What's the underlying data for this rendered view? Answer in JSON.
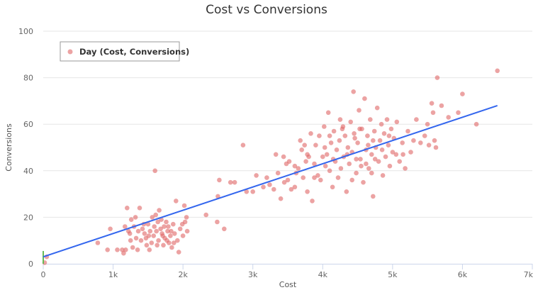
{
  "chart_data": {
    "type": "scatter",
    "title": "Cost vs Conversions",
    "xlabel": "Cost",
    "ylabel": "Conversions",
    "xlim": [
      0,
      7000
    ],
    "ylim": [
      0,
      100
    ],
    "x_ticks": [
      {
        "value": 0,
        "label": "0"
      },
      {
        "value": 1000,
        "label": "1k"
      },
      {
        "value": 2000,
        "label": "2k"
      },
      {
        "value": 3000,
        "label": "3k"
      },
      {
        "value": 4000,
        "label": "4k"
      },
      {
        "value": 5000,
        "label": "5k"
      },
      {
        "value": 6000,
        "label": "6k"
      },
      {
        "value": 7000,
        "label": "7k"
      }
    ],
    "y_ticks": [
      {
        "value": 0,
        "label": "0"
      },
      {
        "value": 20,
        "label": "20"
      },
      {
        "value": 40,
        "label": "40"
      },
      {
        "value": 60,
        "label": "60"
      },
      {
        "value": 80,
        "label": "80"
      },
      {
        "value": 100,
        "label": "100"
      }
    ],
    "grid": true,
    "legend": {
      "position": "top-left",
      "entries": [
        "Day (Cost, Conversions)"
      ]
    },
    "colors": {
      "points": "#e06666",
      "trendline": "#3366ee",
      "marker": "#66bb55",
      "grid": "#e6e6e6",
      "axis": "#ccd6eb"
    },
    "series": [
      {
        "name": "Day (Cost, Conversions)",
        "points": [
          [
            20,
            0.5
          ],
          [
            50,
            3
          ],
          [
            780,
            9
          ],
          [
            920,
            6
          ],
          [
            960,
            15
          ],
          [
            1060,
            6
          ],
          [
            1130,
            6
          ],
          [
            1150,
            4.5
          ],
          [
            1180,
            6
          ],
          [
            1200,
            24
          ],
          [
            1220,
            14
          ],
          [
            1240,
            13
          ],
          [
            1260,
            19
          ],
          [
            1300,
            16
          ],
          [
            1320,
            20
          ],
          [
            1350,
            6
          ],
          [
            1380,
            24
          ],
          [
            1400,
            10
          ],
          [
            1420,
            15
          ],
          [
            1450,
            13
          ],
          [
            1480,
            8
          ],
          [
            1500,
            17
          ],
          [
            1510,
            12
          ],
          [
            1530,
            14
          ],
          [
            1550,
            9
          ],
          [
            1560,
            20
          ],
          [
            1580,
            12
          ],
          [
            1600,
            40
          ],
          [
            1610,
            21
          ],
          [
            1620,
            14
          ],
          [
            1640,
            18
          ],
          [
            1650,
            10
          ],
          [
            1660,
            23
          ],
          [
            1680,
            15
          ],
          [
            1700,
            13
          ],
          [
            1720,
            8
          ],
          [
            1730,
            16
          ],
          [
            1740,
            11
          ],
          [
            1760,
            18
          ],
          [
            1780,
            14
          ],
          [
            1800,
            9
          ],
          [
            1820,
            12
          ],
          [
            1840,
            7
          ],
          [
            1860,
            17
          ],
          [
            1880,
            13
          ],
          [
            1900,
            27
          ],
          [
            1920,
            10
          ],
          [
            1940,
            5
          ],
          [
            1960,
            15
          ],
          [
            2000,
            12
          ],
          [
            2020,
            25
          ],
          [
            2030,
            18
          ],
          [
            2050,
            20
          ],
          [
            2060,
            14
          ],
          [
            1170,
            16
          ],
          [
            1250,
            10
          ],
          [
            1280,
            7
          ],
          [
            1330,
            11
          ],
          [
            1360,
            14
          ],
          [
            1440,
            17
          ],
          [
            1470,
            11
          ],
          [
            1520,
            6
          ],
          [
            1590,
            16
          ],
          [
            1630,
            8
          ],
          [
            1690,
            19
          ],
          [
            1710,
            12
          ],
          [
            1770,
            10
          ],
          [
            1790,
            16
          ],
          [
            1830,
            14
          ],
          [
            1870,
            9
          ],
          [
            1990,
            17
          ],
          [
            2330,
            21
          ],
          [
            2490,
            18
          ],
          [
            2500,
            29
          ],
          [
            2520,
            36
          ],
          [
            2590,
            15
          ],
          [
            2680,
            35
          ],
          [
            2740,
            35
          ],
          [
            2860,
            51
          ],
          [
            2910,
            31
          ],
          [
            3000,
            31
          ],
          [
            3050,
            38
          ],
          [
            3150,
            33
          ],
          [
            3200,
            37
          ],
          [
            3240,
            34
          ],
          [
            3300,
            32
          ],
          [
            3330,
            47
          ],
          [
            3360,
            39
          ],
          [
            3400,
            28
          ],
          [
            3450,
            35
          ],
          [
            3480,
            43
          ],
          [
            3500,
            36
          ],
          [
            3520,
            44
          ],
          [
            3550,
            32
          ],
          [
            3600,
            33
          ],
          [
            3620,
            39
          ],
          [
            3650,
            41
          ],
          [
            3680,
            53
          ],
          [
            3700,
            49
          ],
          [
            3720,
            37
          ],
          [
            3740,
            51
          ],
          [
            3760,
            44
          ],
          [
            3780,
            31
          ],
          [
            3800,
            46
          ],
          [
            3830,
            56
          ],
          [
            3850,
            27
          ],
          [
            3880,
            43
          ],
          [
            3900,
            51
          ],
          [
            3930,
            38
          ],
          [
            3950,
            55
          ],
          [
            3970,
            36
          ],
          [
            4000,
            46
          ],
          [
            4020,
            59
          ],
          [
            4040,
            42
          ],
          [
            4060,
            47
          ],
          [
            4080,
            65
          ],
          [
            4100,
            40
          ],
          [
            4120,
            52
          ],
          [
            4140,
            33
          ],
          [
            4160,
            57
          ],
          [
            4180,
            44
          ],
          [
            4200,
            49
          ],
          [
            4220,
            37
          ],
          [
            4240,
            53
          ],
          [
            4260,
            41
          ],
          [
            4280,
            58
          ],
          [
            4300,
            46
          ],
          [
            4320,
            55
          ],
          [
            4340,
            31
          ],
          [
            4360,
            50
          ],
          [
            4380,
            43
          ],
          [
            4400,
            61
          ],
          [
            4420,
            48
          ],
          [
            4440,
            74
          ],
          [
            4460,
            54
          ],
          [
            4480,
            39
          ],
          [
            4500,
            52
          ],
          [
            4520,
            66
          ],
          [
            4540,
            45
          ],
          [
            4560,
            58
          ],
          [
            4580,
            35
          ],
          [
            4600,
            71
          ],
          [
            4620,
            49
          ],
          [
            4640,
            55
          ],
          [
            4660,
            41
          ],
          [
            4680,
            62
          ],
          [
            4700,
            47
          ],
          [
            4720,
            29
          ],
          [
            4740,
            57
          ],
          [
            4760,
            50
          ],
          [
            4780,
            67
          ],
          [
            4800,
            44
          ],
          [
            4820,
            53
          ],
          [
            4840,
            60
          ],
          [
            4860,
            38
          ],
          [
            4880,
            56
          ],
          [
            4900,
            46
          ],
          [
            4920,
            62
          ],
          [
            4940,
            51
          ],
          [
            4960,
            42
          ],
          [
            4980,
            58
          ],
          [
            5000,
            48
          ],
          [
            5020,
            54
          ],
          [
            5060,
            61
          ],
          [
            5100,
            44
          ],
          [
            5140,
            52
          ],
          [
            5180,
            41
          ],
          [
            5220,
            57
          ],
          [
            5260,
            48
          ],
          [
            5300,
            53
          ],
          [
            5340,
            62
          ],
          [
            5400,
            52
          ],
          [
            5460,
            55
          ],
          [
            5500,
            60
          ],
          [
            5520,
            51
          ],
          [
            5560,
            69
          ],
          [
            5580,
            65
          ],
          [
            5600,
            53
          ],
          [
            5620,
            50
          ],
          [
            5640,
            80
          ],
          [
            5700,
            68
          ],
          [
            5800,
            63
          ],
          [
            5940,
            65
          ],
          [
            6000,
            73
          ],
          [
            6200,
            60
          ],
          [
            6500,
            83
          ],
          [
            4150,
            45
          ],
          [
            4250,
            62
          ],
          [
            4350,
            47
          ],
          [
            4450,
            56
          ],
          [
            4550,
            42
          ],
          [
            4650,
            51
          ],
          [
            4750,
            45
          ],
          [
            4850,
            49
          ],
          [
            3600,
            42
          ],
          [
            3880,
            37
          ],
          [
            4030,
            50
          ],
          [
            4420,
            36
          ],
          [
            4530,
            58
          ],
          [
            4620,
            43
          ],
          [
            4720,
            53
          ],
          [
            5050,
            47
          ],
          [
            4100,
            55
          ],
          [
            4290,
            59
          ],
          [
            4480,
            45
          ],
          [
            4700,
            39
          ],
          [
            4950,
            55
          ],
          [
            5150,
            47
          ],
          [
            3440,
            46
          ],
          [
            3780,
            47
          ]
        ]
      }
    ],
    "trendline": {
      "x": [
        0,
        6500
      ],
      "y": [
        3,
        68
      ]
    }
  }
}
